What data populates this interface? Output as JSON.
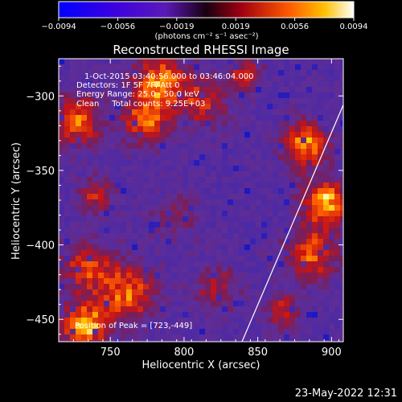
{
  "colorbar": {
    "tick_labels": [
      "−0.0094",
      "−0.0056",
      "−0.0019",
      "0.0019",
      "0.0056",
      "0.0094"
    ],
    "range": [
      -0.0094,
      0.0094
    ],
    "unit_label": "(photons cm⁻² s⁻¹ asec⁻²)"
  },
  "chart_data": {
    "type": "heatmap",
    "title": "Reconstructed RHESSI Image",
    "xlabel": "Heliocentric X (arcsec)",
    "ylabel": "Heliocentric Y (arcsec)",
    "xlim": [
      715,
      908
    ],
    "ylim": [
      -465,
      -275
    ],
    "xticks": [
      750,
      800,
      850,
      900
    ],
    "yticks": [
      -300,
      -350,
      -400,
      -450
    ],
    "xtick_labels": [
      "750",
      "800",
      "850",
      "900"
    ],
    "ytick_labels": [
      "−300",
      "−350",
      "−400",
      "−450"
    ],
    "colormap": "blue-purple-red-yellow-white",
    "peak": [
      723,
      -449
    ],
    "limb_line": [
      [
        838,
        -468
      ],
      [
        908,
        -306
      ]
    ],
    "annotations": [
      "1-Oct-2015 03:40:56.000 to 03:46:04.000",
      "Detectors: 1F 5F 7F, Att 0",
      "Energy Range: 25.0 - 50.0 keV",
      "Clean     Total counts: 9.25E+03",
      "Position of Peak = [723,-449]"
    ]
  },
  "timestamp": "23-May-2022 12:31"
}
